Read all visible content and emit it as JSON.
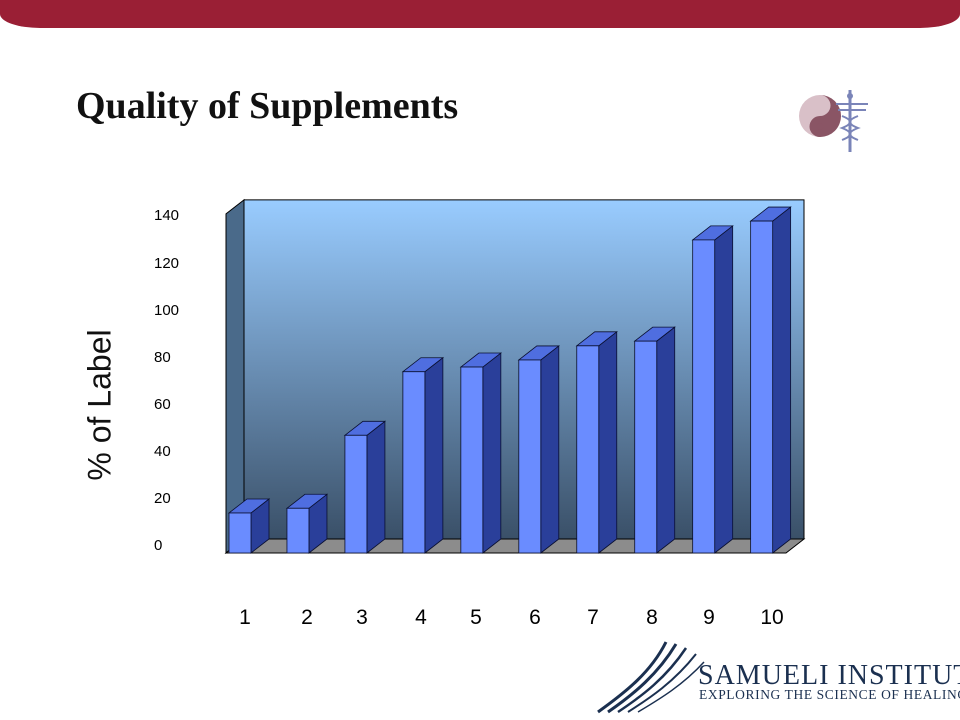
{
  "slide": {
    "title": "Quality of Supplements",
    "brand_name": "SAMUELI INSTITUTE",
    "brand_tagline": "EXPLORING THE SCIENCE OF HEALING"
  },
  "icons": {
    "logo": "yin-yang-caduceus-icon",
    "brand_mark": "wave-stripes-icon"
  },
  "colors": {
    "top_bar": "#9a1f35",
    "bar_front": "#6a8cff",
    "bar_side": "#2a3f9a",
    "bar_top": "#4f6ee0",
    "wall_top": "#99ccff",
    "wall_bottom": "#3a5068",
    "brand_text": "#1b3050"
  },
  "chart_data": {
    "type": "bar",
    "categories": [
      "1",
      "2",
      "3",
      "4",
      "5",
      "6",
      "7",
      "8",
      "9",
      "10"
    ],
    "values": [
      17,
      19,
      50,
      77,
      79,
      82,
      88,
      90,
      133,
      141
    ],
    "ylabel": "% of Label",
    "ylim": [
      0,
      150
    ],
    "yticks": [
      "0",
      "20",
      "40",
      "60",
      "80",
      "100",
      "120",
      "140"
    ],
    "grid": false,
    "legend": "none",
    "style": "3d-column"
  }
}
